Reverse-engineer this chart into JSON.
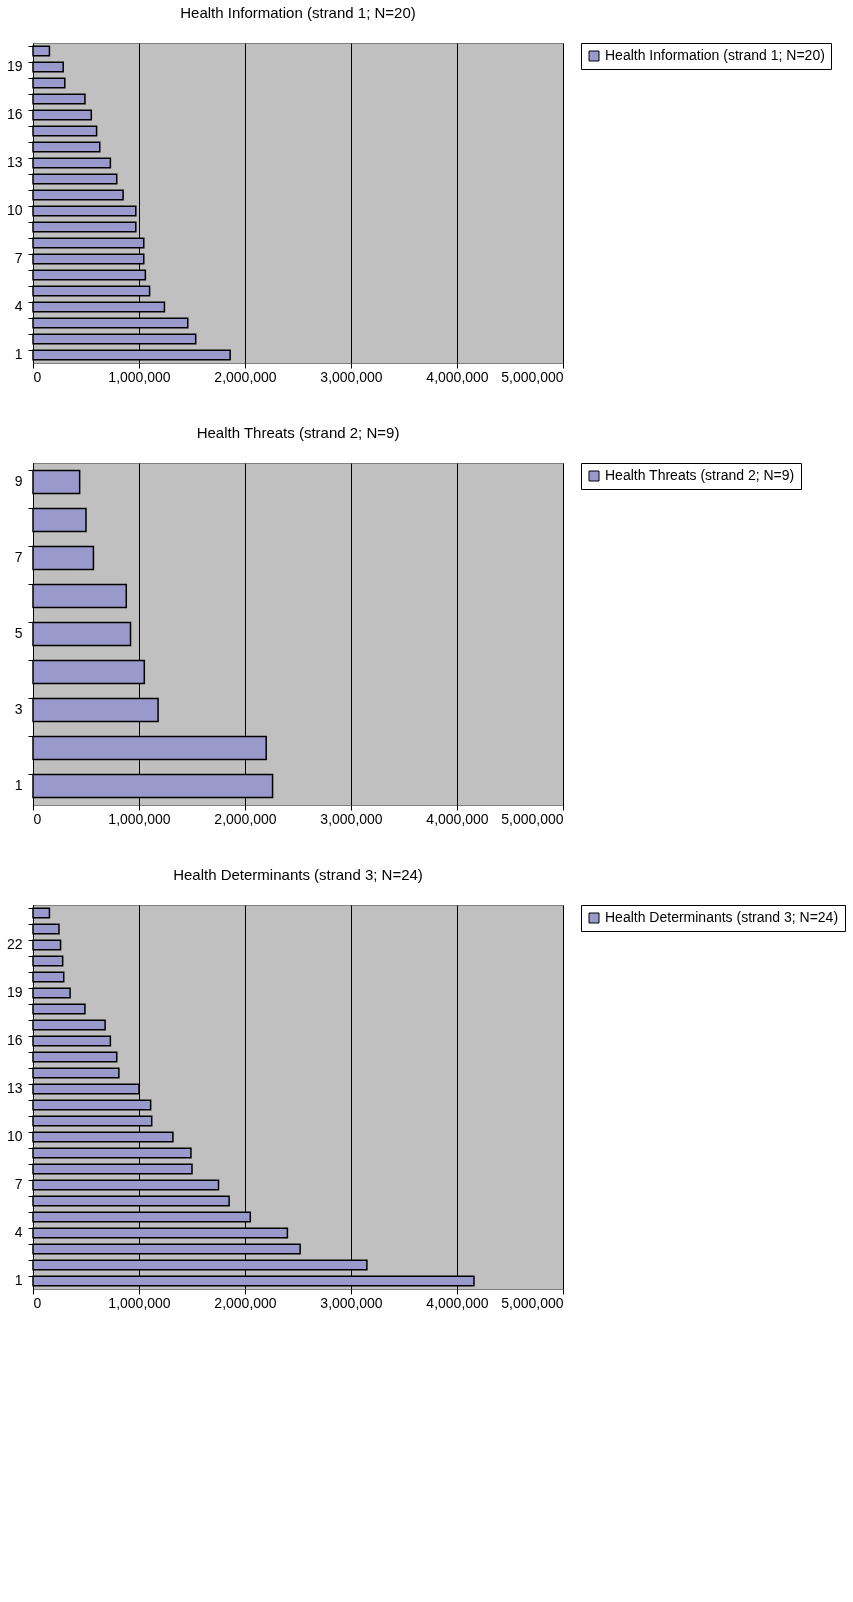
{
  "chart_data": [
    {
      "type": "bar",
      "orientation": "horizontal",
      "title": "Health Information (strand 1; N=20)",
      "categories": [
        null,
        "19",
        null,
        null,
        "16",
        null,
        null,
        "13",
        null,
        null,
        "10",
        null,
        null,
        "7",
        null,
        null,
        "4",
        null,
        null,
        "1"
      ],
      "series": [
        {
          "name": "Health Information (strand 1; N=20)",
          "color": "#9999cc",
          "values": [
            155000,
            285000,
            300000,
            490000,
            550000,
            600000,
            630000,
            730000,
            790000,
            850000,
            970000,
            970000,
            1045000,
            1045000,
            1060000,
            1100000,
            1240000,
            1460000,
            1535000,
            1860000
          ]
        }
      ],
      "xlim": [
        0,
        5000000
      ],
      "xticks": [
        {
          "value": 0,
          "label": "0"
        },
        {
          "value": 1000000,
          "label": "1,000,000"
        },
        {
          "value": 2000000,
          "label": "2,000,000"
        },
        {
          "value": 3000000,
          "label": "3,000,000"
        },
        {
          "value": 4000000,
          "label": "4,000,000"
        },
        {
          "value": 5000000,
          "label": "5,000,000"
        }
      ],
      "grid": "x",
      "legend": "right"
    },
    {
      "type": "bar",
      "orientation": "horizontal",
      "title": "Health Threats (strand 2; N=9)",
      "categories": [
        "9",
        null,
        "7",
        null,
        "5",
        null,
        "3",
        null,
        "1"
      ],
      "series": [
        {
          "name": "Health Threats (strand 2; N=9)",
          "color": "#9999cc",
          "values": [
            440000,
            500000,
            570000,
            880000,
            920000,
            1050000,
            1180000,
            2200000,
            2260000
          ]
        }
      ],
      "xlim": [
        0,
        5000000
      ],
      "xticks": [
        {
          "value": 0,
          "label": "0"
        },
        {
          "value": 1000000,
          "label": "1,000,000"
        },
        {
          "value": 2000000,
          "label": "2,000,000"
        },
        {
          "value": 3000000,
          "label": "3,000,000"
        },
        {
          "value": 4000000,
          "label": "4,000,000"
        },
        {
          "value": 5000000,
          "label": "5,000,000"
        }
      ],
      "grid": "x",
      "legend": "right"
    },
    {
      "type": "bar",
      "orientation": "horizontal",
      "title": "Health Determinants (strand 3; N=24)",
      "categories": [
        null,
        null,
        "22",
        null,
        null,
        "19",
        null,
        null,
        "16",
        null,
        null,
        "13",
        null,
        null,
        "10",
        null,
        null,
        "7",
        null,
        null,
        "4",
        null,
        null,
        "1"
      ],
      "series": [
        {
          "name": "Health Determinants (strand 3; N=24)",
          "color": "#9999cc",
          "values": [
            155000,
            245000,
            260000,
            280000,
            290000,
            350000,
            490000,
            680000,
            730000,
            790000,
            810000,
            1000000,
            1110000,
            1120000,
            1320000,
            1490000,
            1500000,
            1750000,
            1850000,
            2050000,
            2400000,
            2520000,
            3150000,
            4160000
          ]
        }
      ],
      "xlim": [
        0,
        5000000
      ],
      "xticks": [
        {
          "value": 0,
          "label": "0"
        },
        {
          "value": 1000000,
          "label": "1,000,000"
        },
        {
          "value": 2000000,
          "label": "2,000,000"
        },
        {
          "value": 3000000,
          "label": "3,000,000"
        },
        {
          "value": 4000000,
          "label": "4,000,000"
        },
        {
          "value": 5000000,
          "label": "5,000,000"
        }
      ],
      "grid": "x",
      "legend": "right"
    }
  ]
}
